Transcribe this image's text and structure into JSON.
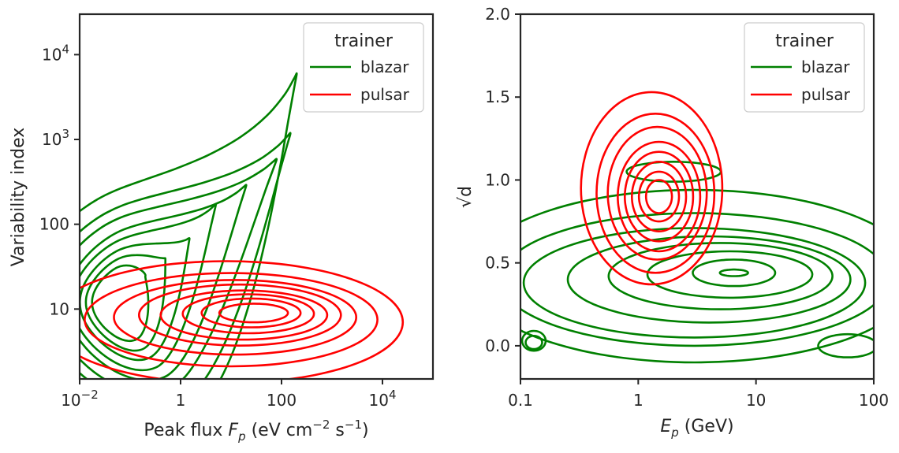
{
  "chart_data": [
    {
      "type": "kde-contour",
      "xlabel": "Peak flux F_p  (eV cm^-2 s^-1)",
      "ylabel": "Variability index",
      "xscale": "log",
      "yscale": "log",
      "xlim": [
        0.01,
        100000
      ],
      "ylim": [
        1.5,
        30000
      ],
      "x_ticks": [
        {
          "value": 0.01,
          "base": "10",
          "exp": "−2"
        },
        {
          "value": 1,
          "text": "1"
        },
        {
          "value": 100,
          "text": "100"
        },
        {
          "value": 10000,
          "base": "10",
          "exp": "4"
        }
      ],
      "y_ticks": [
        {
          "value": 10,
          "text": "10"
        },
        {
          "value": 100,
          "text": "100"
        },
        {
          "value": 1000,
          "base": "10",
          "exp": "3"
        },
        {
          "value": 10000,
          "base": "10",
          "exp": "4"
        }
      ],
      "legend": {
        "title": "trainer",
        "position": "upper right"
      },
      "series": [
        {
          "name": "blazar",
          "color": "#008000",
          "levels": [
            {
              "center": [
                0.15,
                12
              ],
              "a": 2.2,
              "b": 1.4,
              "skew": 0.8,
              "shape": "ridge",
              "peak": [
                200,
                5000
              ]
            },
            {
              "center": [
                0.15,
                12
              ],
              "a": 1.9,
              "b": 1.2,
              "skew": 0.75,
              "shape": "ridge",
              "peak": [
                150,
                1000
              ]
            },
            {
              "center": [
                0.12,
                12
              ],
              "a": 1.6,
              "b": 1.05,
              "skew": 0.7,
              "shape": "ridge",
              "peak": [
                80,
                500
              ]
            },
            {
              "center": [
                0.12,
                12
              ],
              "a": 1.35,
              "b": 0.9,
              "skew": 0.65,
              "shape": "ridge",
              "peak": [
                20,
                250
              ]
            },
            {
              "center": [
                0.1,
                12
              ],
              "a": 1.15,
              "b": 0.78,
              "skew": 0.6,
              "shape": "ridge",
              "peak": [
                5,
                150
              ]
            },
            {
              "center": [
                0.09,
                12
              ],
              "a": 0.95,
              "b": 0.66,
              "skew": 0.55,
              "shape": "ridge",
              "peak": [
                1.5,
                60
              ]
            },
            {
              "center": [
                0.08,
                12
              ],
              "a": 0.78,
              "b": 0.55,
              "skew": 0.5,
              "shape": "ridge",
              "peak": [
                0.5,
                35
              ]
            },
            {
              "center": [
                0.07,
                12
              ],
              "a": 0.6,
              "b": 0.44,
              "skew": 0.4,
              "shape": "ridge",
              "peak": [
                0.2,
                22
              ]
            }
          ]
        },
        {
          "name": "pulsar",
          "color": "#ff0000",
          "levels": [
            {
              "center": [
                8,
                7
              ],
              "a": 3.5,
              "b": 0.72
            },
            {
              "center": [
                10,
                7.5
              ],
              "a": 2.9,
              "b": 0.55
            },
            {
              "center": [
                12,
                8
              ],
              "a": 2.4,
              "b": 0.44
            },
            {
              "center": [
                15,
                8.5
              ],
              "a": 2.0,
              "b": 0.36
            },
            {
              "center": [
                18,
                8.5
              ],
              "a": 1.65,
              "b": 0.29
            },
            {
              "center": [
                22,
                8.8
              ],
              "a": 1.3,
              "b": 0.23
            },
            {
              "center": [
                25,
                9
              ],
              "a": 0.98,
              "b": 0.17
            },
            {
              "center": [
                28,
                9
              ],
              "a": 0.68,
              "b": 0.11
            }
          ]
        }
      ]
    },
    {
      "type": "kde-contour",
      "xlabel": "E_p  (GeV)",
      "ylabel": "√d",
      "xscale": "log",
      "yscale": "linear",
      "xlim": [
        0.1,
        100
      ],
      "ylim": [
        -0.2,
        2.0
      ],
      "x_ticks": [
        {
          "value": 0.1,
          "text": "0.1"
        },
        {
          "value": 1,
          "text": "1"
        },
        {
          "value": 10,
          "text": "10"
        },
        {
          "value": 100,
          "text": "100"
        }
      ],
      "y_ticks": [
        {
          "value": 0.0,
          "text": "0.0"
        },
        {
          "value": 0.5,
          "text": "0.5"
        },
        {
          "value": 1.0,
          "text": "1.0"
        },
        {
          "value": 1.5,
          "text": "1.5"
        },
        {
          "value": 2.0,
          "text": "2.0"
        }
      ],
      "legend": {
        "title": "trainer",
        "position": "upper right"
      },
      "series": [
        {
          "name": "blazar",
          "color": "#008000",
          "levels": [
            {
              "center": [
                3,
                0.42
              ],
              "a": 1.9,
              "b": 0.52
            },
            {
              "center": [
                3,
                0.4
              ],
              "a": 1.65,
              "b": 0.4
            },
            {
              "center": [
                3,
                0.38
              ],
              "a": 1.45,
              "b": 0.33
            },
            {
              "center": [
                4,
                0.4
              ],
              "a": 1.2,
              "b": 0.26
            },
            {
              "center": [
                5,
                0.42
              ],
              "a": 0.95,
              "b": 0.2
            },
            {
              "center": [
                6,
                0.43
              ],
              "a": 0.7,
              "b": 0.14
            },
            {
              "center": [
                6.5,
                0.44
              ],
              "a": 0.35,
              "b": 0.08
            },
            {
              "center": [
                6.5,
                0.44
              ],
              "a": 0.12,
              "b": 0.02
            },
            {
              "center": [
                0.13,
                0.03
              ],
              "a": 0.1,
              "b": 0.06
            },
            {
              "center": [
                0.13,
                0.02
              ],
              "a": 0.07,
              "b": 0.04
            },
            {
              "center": [
                60,
                0.0
              ],
              "a": 0.25,
              "b": 0.07
            },
            {
              "center": [
                2,
                1.05
              ],
              "a": 0.4,
              "b": 0.06
            }
          ]
        },
        {
          "name": "pulsar",
          "color": "#ff0000",
          "levels": [
            {
              "center": [
                1.3,
                0.95
              ],
              "a": 0.6,
              "b": 0.58
            },
            {
              "center": [
                1.4,
                0.92
              ],
              "a": 0.5,
              "b": 0.48
            },
            {
              "center": [
                1.45,
                0.92
              ],
              "a": 0.42,
              "b": 0.4
            },
            {
              "center": [
                1.5,
                0.9
              ],
              "a": 0.35,
              "b": 0.33
            },
            {
              "center": [
                1.5,
                0.9
              ],
              "a": 0.29,
              "b": 0.27
            },
            {
              "center": [
                1.5,
                0.9
              ],
              "a": 0.23,
              "b": 0.21
            },
            {
              "center": [
                1.5,
                0.9
              ],
              "a": 0.17,
              "b": 0.15
            },
            {
              "center": [
                1.5,
                0.9
              ],
              "a": 0.11,
              "b": 0.1
            }
          ]
        }
      ]
    }
  ]
}
